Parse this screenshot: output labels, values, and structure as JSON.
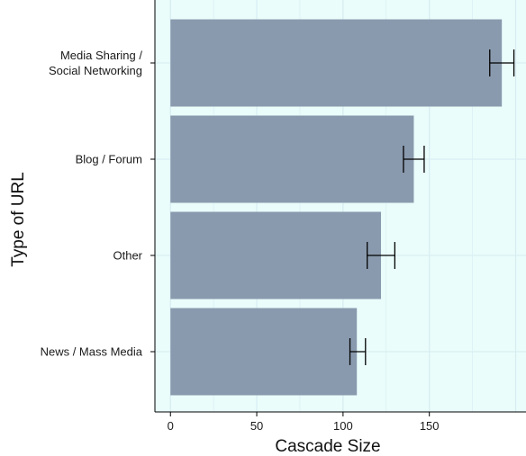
{
  "chart_data": {
    "type": "bar",
    "orientation": "horizontal",
    "categories": [
      "Media Sharing /\nSocial Networking",
      "Blog / Forum",
      "Other",
      "News / Mass Media"
    ],
    "values": [
      192,
      141,
      122,
      108
    ],
    "error_low": [
      185,
      135,
      114,
      104
    ],
    "error_high": [
      199,
      147,
      130,
      113
    ],
    "xlabel": "Cascade Size",
    "ylabel": "Type of URL",
    "xticks": [
      0,
      50,
      100,
      150
    ],
    "xlim": [
      -9,
      206
    ],
    "grid": true,
    "colors": {
      "bar": "#8a9aae",
      "panel": "#eafdfb",
      "grid": "#d7ecf2",
      "error_bar": "#000000"
    }
  }
}
